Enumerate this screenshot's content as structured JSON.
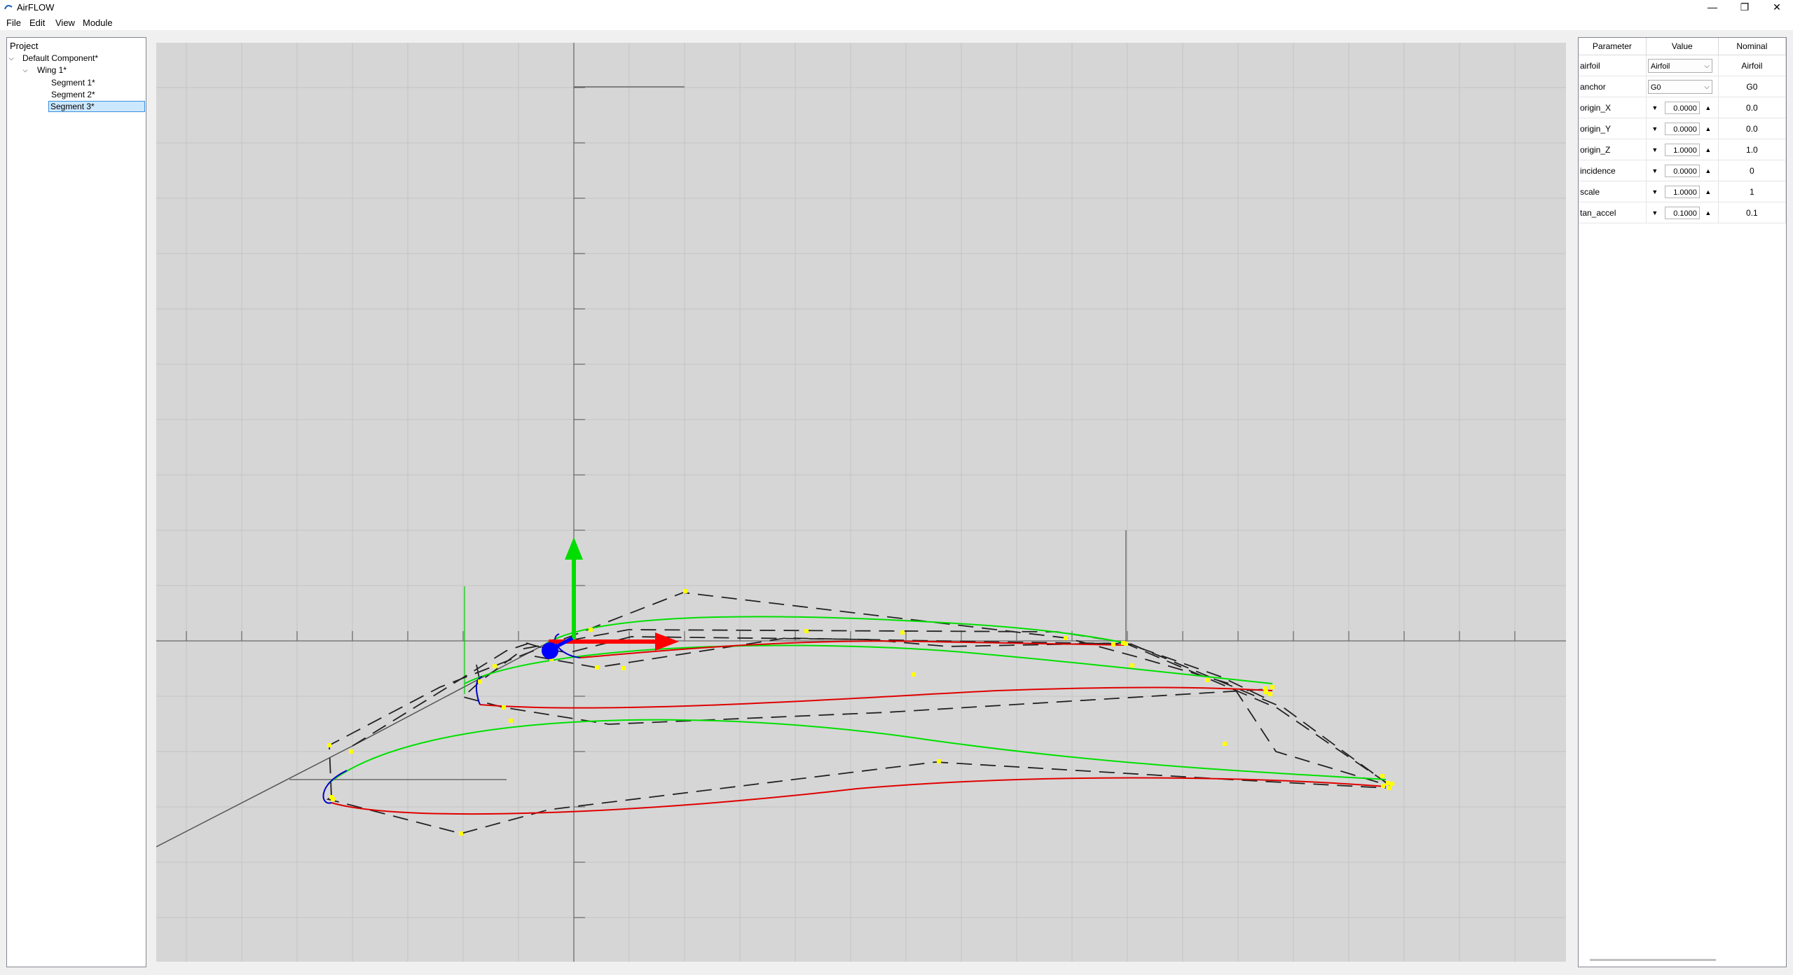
{
  "window": {
    "title": "AirFLOW",
    "minimize": "—",
    "restore": "❐",
    "close": "✕"
  },
  "menu": [
    "File",
    "Edit",
    "View",
    "Module"
  ],
  "tree": {
    "header": "Project",
    "component": "Default Component*",
    "wing": "Wing 1*",
    "segments": [
      "Segment 1*",
      "Segment 2*",
      "Segment 3*"
    ],
    "selected_segment_index": 2
  },
  "params": {
    "headers": {
      "parameter": "Parameter",
      "value": "Value",
      "nominal": "Nominal"
    },
    "rows": [
      {
        "name": "airfoil",
        "type": "combo",
        "value": "Airfoil",
        "nominal": "Airfoil"
      },
      {
        "name": "anchor",
        "type": "combo",
        "value": "G0",
        "nominal": "G0"
      },
      {
        "name": "origin_X",
        "type": "spin",
        "value": "0.0000",
        "nominal": "0.0"
      },
      {
        "name": "origin_Y",
        "type": "spin",
        "value": "0.0000",
        "nominal": "0.0"
      },
      {
        "name": "origin_Z",
        "type": "spin",
        "value": "1.0000",
        "nominal": "1.0"
      },
      {
        "name": "incidence",
        "type": "spin",
        "value": "0.0000",
        "nominal": "0"
      },
      {
        "name": "scale",
        "type": "spin",
        "value": "1.0000",
        "nominal": "1"
      },
      {
        "name": "tan_accel",
        "type": "spin",
        "value": "0.1000",
        "nominal": "0.1"
      }
    ]
  },
  "icons": {
    "dropdown": "chevron-down-icon",
    "spin_down": "triangle-down-icon",
    "spin_up": "triangle-up-icon"
  },
  "colors": {
    "viewport_bg": "#d6d6d6",
    "upper_surface": "#00e000",
    "lower_surface": "#e00000",
    "leading_edge": "#0000c8",
    "control_points": "#ffff00",
    "axis_x": "#ff0000",
    "axis_y": "#00dd00",
    "gizmo_center": "#0000ff"
  }
}
